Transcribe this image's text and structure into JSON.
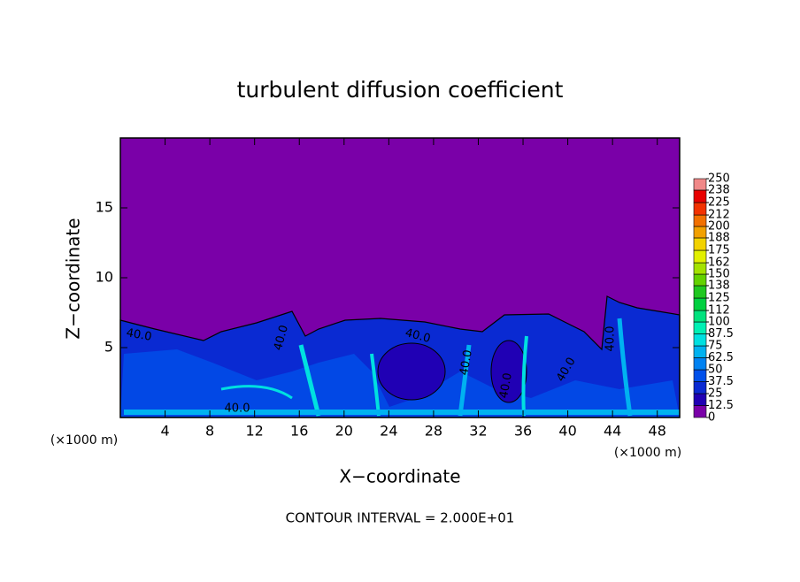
{
  "chart_data": {
    "type": "contour",
    "title": "turbulent diffusion coefficient",
    "x_label": "X−coordinate",
    "y_label": "Z−coordinate",
    "y_unit": "(×1000 m)",
    "x_unit": "(×1000 m)",
    "note": "CONTOUR INTERVAL = 2.000E+01",
    "xlim": [
      0,
      50
    ],
    "ylim": [
      0,
      20
    ],
    "xticks": [
      4,
      8,
      12,
      16,
      20,
      24,
      28,
      32,
      36,
      40,
      44,
      48
    ],
    "yticks": [
      5,
      10,
      15
    ],
    "contour_labels": [
      "40.0",
      "40.0",
      "40.0",
      "40.0",
      "40.0",
      "40.0",
      "40.0",
      "40.0"
    ],
    "colorbar": {
      "ticks": [
        0,
        12.5,
        25,
        37.5,
        50,
        62.5,
        75,
        87.5,
        100,
        112,
        125,
        138,
        150,
        162,
        175,
        188,
        200,
        212,
        225,
        238,
        250
      ],
      "colors": [
        "#7a00a8",
        "#2000b4",
        "#0a2ad2",
        "#0050ea",
        "#0082f2",
        "#00b2f0",
        "#00e0e0",
        "#00f0b4",
        "#00e27e",
        "#00d040",
        "#20c820",
        "#64d200",
        "#a4e200",
        "#e2f000",
        "#f2d200",
        "#f2a000",
        "#f27000",
        "#f23200",
        "#e80000",
        "#f08888"
      ]
    }
  }
}
